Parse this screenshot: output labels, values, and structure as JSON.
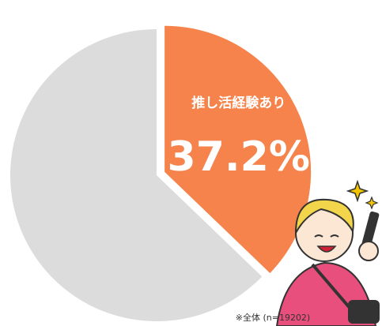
{
  "chart_data": {
    "type": "pie",
    "categories": [
      "推し活経験あり",
      null
    ],
    "values": [
      37.2,
      62.8
    ],
    "value_labels": [
      "37.2%",
      null
    ],
    "colors": [
      "#f5834b",
      "#dcdcdc"
    ],
    "note": "※全体 (n=19202)"
  }
}
